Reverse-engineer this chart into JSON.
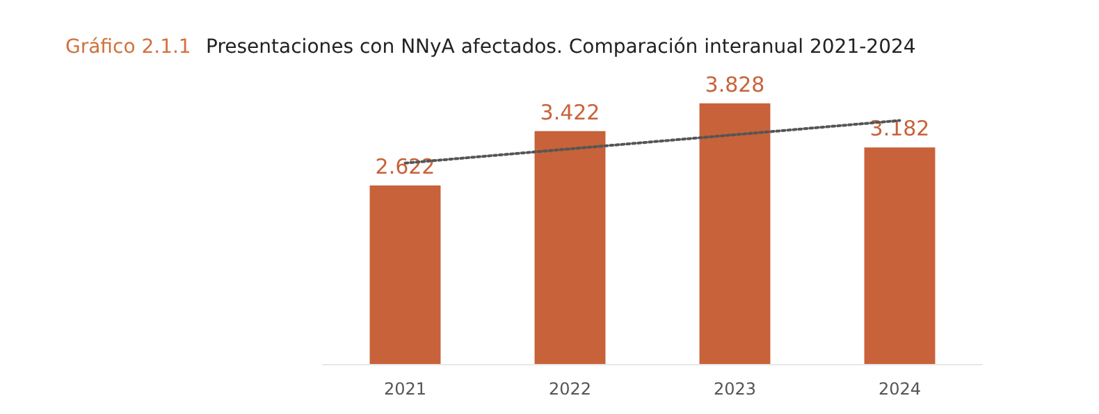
{
  "chart_data": {
    "type": "bar",
    "title": "Gráfico 2.1.1",
    "subtitle": "Presentaciones con NNyA afectados. Comparación interanual 2021-2024",
    "categories": [
      "2021",
      "2022",
      "2023",
      "2024"
    ],
    "series": [
      {
        "color": "#c8623a",
        "values": [
          2622,
          3422,
          3828,
          3182
        ],
        "value_labels": [
          "2.622",
          "3.422",
          "3.828",
          "3.182"
        ]
      },
      {
        "type": "line",
        "color": "#555555",
        "values": [
          2951,
          3160,
          3368,
          3577
        ],
        "line_style": "dotted",
        "marker": "none"
      }
    ],
    "grid": false,
    "tick_labels": "x"
  }
}
